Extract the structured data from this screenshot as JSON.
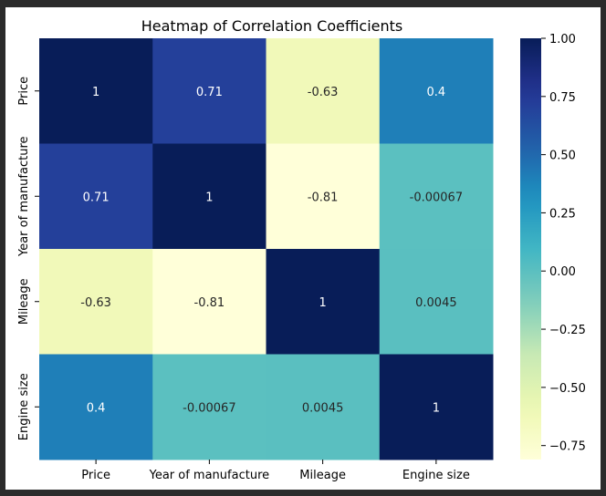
{
  "chart_data": {
    "type": "heatmap",
    "title": "Heatmap of Correlation Coefficients",
    "x_categories": [
      "Price",
      "Year of manufacture",
      "Mileage",
      "Engine size"
    ],
    "y_categories": [
      "Price",
      "Year of manufacture",
      "Mileage",
      "Engine size"
    ],
    "values": [
      [
        1,
        0.71,
        -0.63,
        0.4
      ],
      [
        0.71,
        1,
        -0.81,
        -0.00067
      ],
      [
        -0.63,
        -0.81,
        1,
        0.0045
      ],
      [
        0.4,
        -0.00067,
        0.0045,
        1
      ]
    ],
    "value_labels": [
      [
        "1",
        "0.71",
        "-0.63",
        "0.4"
      ],
      [
        "0.71",
        "1",
        "-0.81",
        "-0.00067"
      ],
      [
        "-0.63",
        "-0.81",
        "1",
        "0.0045"
      ],
      [
        "0.4",
        "-0.00067",
        "0.0045",
        "1"
      ]
    ],
    "colorbar": {
      "colormap": "YlGnBu",
      "vmin": -0.81,
      "vmax": 1,
      "ticks": [
        1.0,
        0.75,
        0.5,
        0.25,
        0.0,
        -0.25,
        -0.5,
        -0.75
      ],
      "tick_labels": [
        "1.00",
        "0.75",
        "0.50",
        "0.25",
        "0.00",
        "−0.25",
        "−0.50",
        "−0.75"
      ]
    },
    "grid": false,
    "legend": "colorbar-right"
  }
}
